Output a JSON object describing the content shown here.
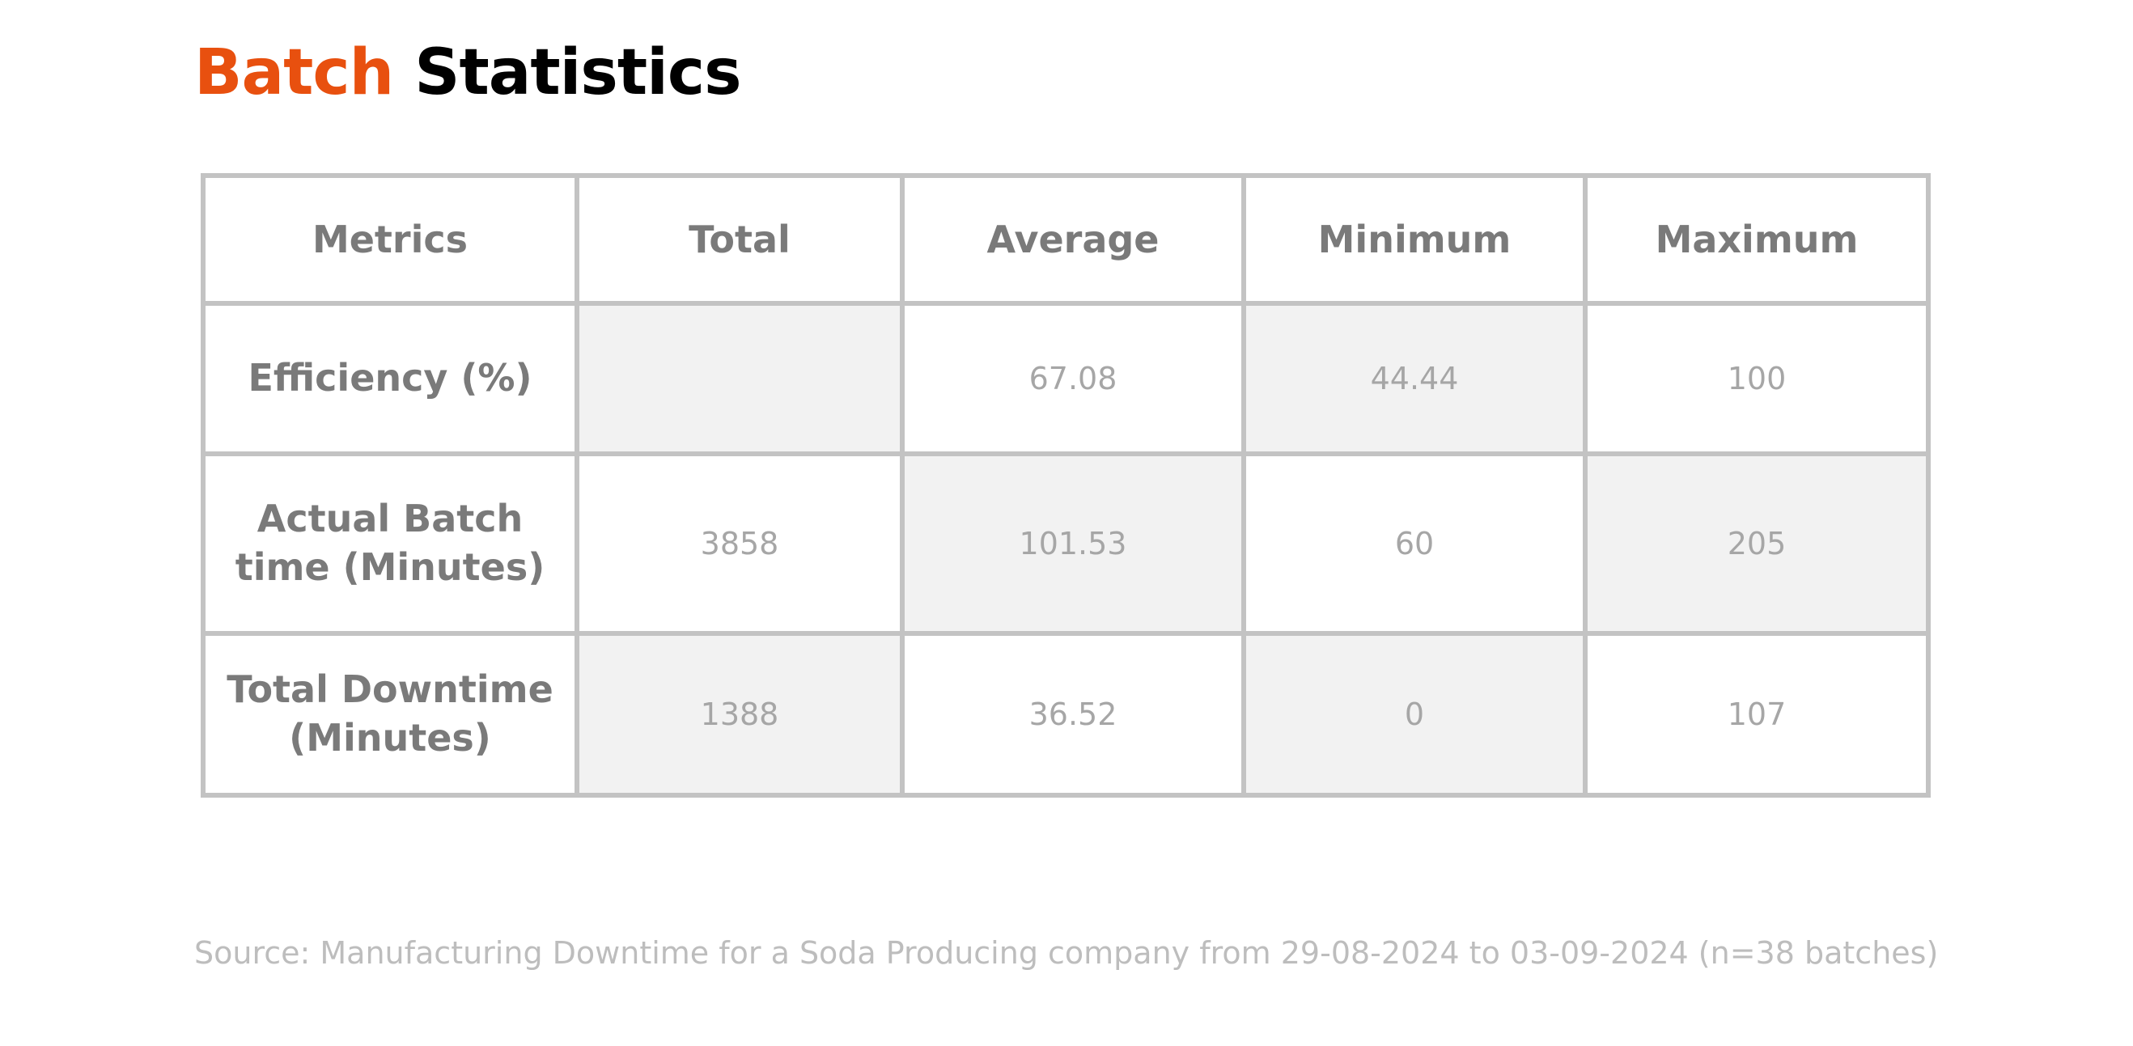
{
  "title": {
    "accent": "Batch",
    "rest": "Statistics",
    "accent_color": "#E8500F",
    "rest_color": "#000000"
  },
  "table": {
    "headers": [
      "Metrics",
      "Total",
      "Average",
      "Minimum",
      "Maximum"
    ],
    "rows": [
      {
        "metric": "Efficiency (%)",
        "total": "",
        "average": "67.08",
        "minimum": "44.44",
        "maximum": "100"
      },
      {
        "metric": "Actual Batch time (Minutes)",
        "total": "3858",
        "average": "101.53",
        "minimum": "60",
        "maximum": "205"
      },
      {
        "metric": "Total Downtime (Minutes)",
        "total": "1388",
        "average": "36.52",
        "minimum": "0",
        "maximum": "107"
      }
    ],
    "border_color": "#C3C3C3",
    "shade_color": "#F2F2F2",
    "header_text_color": "#7A7A7A",
    "value_text_color": "#A6A6A6"
  },
  "source": "Source: Manufacturing Downtime for a Soda Producing company from 29-08-2024 to 03-09-2024 (n=38 batches)"
}
